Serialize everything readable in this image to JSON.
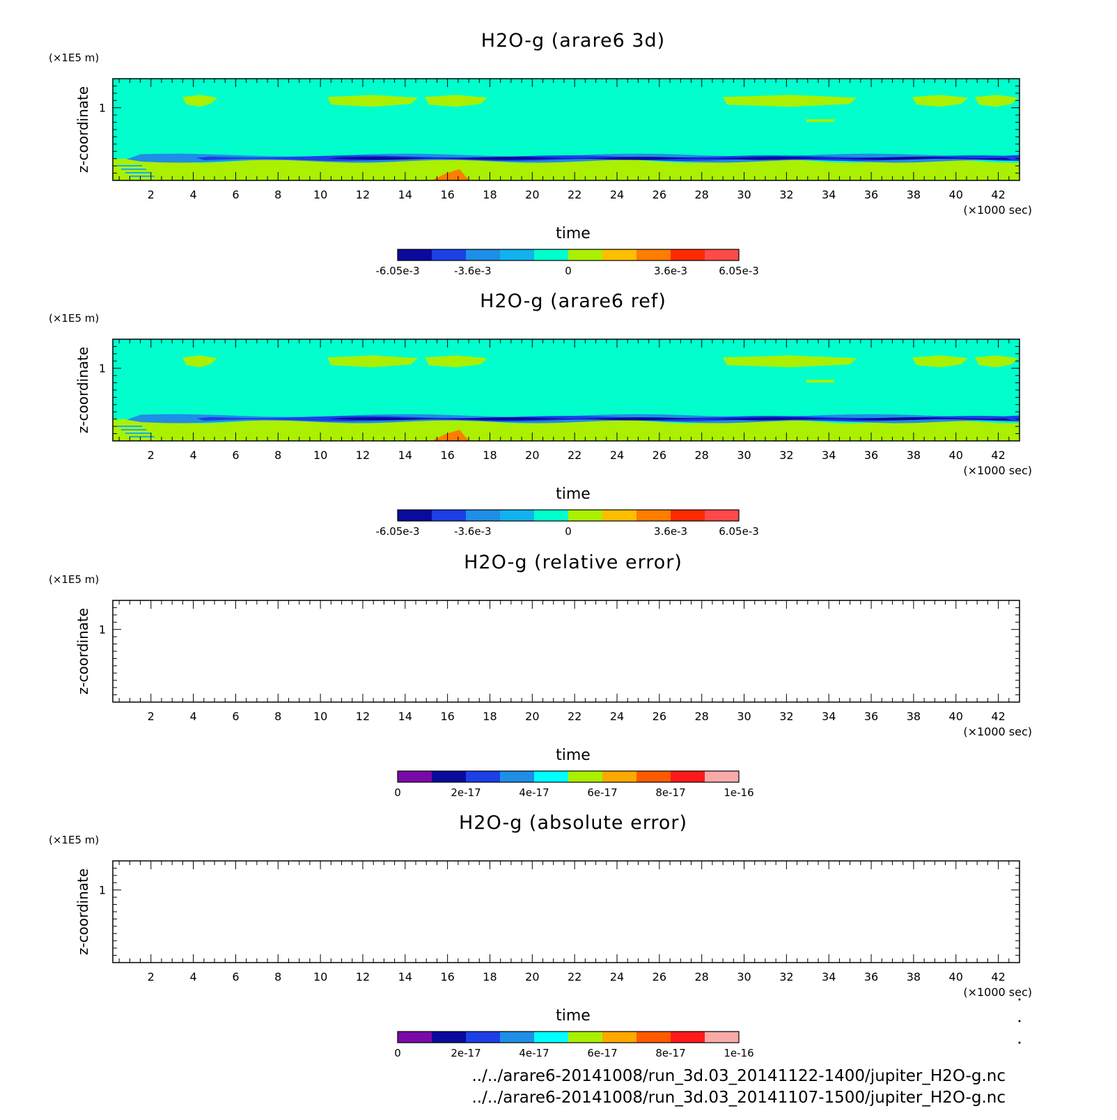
{
  "chart_data": [
    {
      "type": "heatmap",
      "title": "H2O-g (arare6 3d)",
      "xlabel": "time",
      "ylabel": "z-coordinate",
      "x_unit": "(×1000 sec)",
      "y_unit": "(×1E5 m)",
      "x_ticks": [
        "2",
        "4",
        "6",
        "8",
        "10",
        "12",
        "14",
        "16",
        "18",
        "20",
        "22",
        "24",
        "26",
        "28",
        "30",
        "32",
        "34",
        "36",
        "38",
        "40",
        "42"
      ],
      "y_ticks": [
        "1"
      ],
      "xlim": [
        0.2,
        43.0
      ],
      "ylim": [
        0.0,
        1.4
      ],
      "colorbar": {
        "labels": [
          "-6.05e-3",
          "-3.6e-3",
          "0",
          "3.6e-3",
          "6.05e-3"
        ],
        "colors": [
          "#0a0a9c",
          "#1c3fe6",
          "#1e8ee6",
          "#11b2ee",
          "#00ffcc",
          "#aaf000",
          "#ffbe00",
          "#ff7d00",
          "#ff2a00",
          "#ff4a4a"
        ]
      },
      "field": {
        "background": "#00ffcc",
        "upper_band_color": "#aaf000",
        "upper_band_level": 1.1,
        "lower_layer_color": "#aaf000",
        "lower_layer_top": 0.27,
        "min_band_color": "#0a0a9c",
        "min_band_level": 0.33
      }
    },
    {
      "type": "heatmap",
      "title": "H2O-g (arare6 ref)",
      "xlabel": "time",
      "ylabel": "z-coordinate",
      "x_unit": "(×1000 sec)",
      "y_unit": "(×1E5 m)",
      "x_ticks": [
        "2",
        "4",
        "6",
        "8",
        "10",
        "12",
        "14",
        "16",
        "18",
        "20",
        "22",
        "24",
        "26",
        "28",
        "30",
        "32",
        "34",
        "36",
        "38",
        "40",
        "42"
      ],
      "y_ticks": [
        "1"
      ],
      "xlim": [
        0.2,
        43.0
      ],
      "ylim": [
        0.0,
        1.4
      ],
      "colorbar": {
        "labels": [
          "-6.05e-3",
          "-3.6e-3",
          "0",
          "3.6e-3",
          "6.05e-3"
        ],
        "colors": [
          "#0a0a9c",
          "#1c3fe6",
          "#1e8ee6",
          "#11b2ee",
          "#00ffcc",
          "#aaf000",
          "#ffbe00",
          "#ff7d00",
          "#ff2a00",
          "#ff4a4a"
        ]
      },
      "field": {
        "background": "#00ffcc",
        "upper_band_color": "#aaf000",
        "upper_band_level": 1.1,
        "lower_layer_color": "#aaf000",
        "lower_layer_top": 0.27,
        "min_band_color": "#0a0a9c",
        "min_band_level": 0.33
      }
    },
    {
      "type": "heatmap",
      "title": "H2O-g (relative error)",
      "xlabel": "time",
      "ylabel": "z-coordinate",
      "x_unit": "(×1000 sec)",
      "y_unit": "(×1E5 m)",
      "x_ticks": [
        "2",
        "4",
        "6",
        "8",
        "10",
        "12",
        "14",
        "16",
        "18",
        "20",
        "22",
        "24",
        "26",
        "28",
        "30",
        "32",
        "34",
        "36",
        "38",
        "40",
        "42"
      ],
      "y_ticks": [
        "1"
      ],
      "xlim": [
        0.2,
        43.0
      ],
      "ylim": [
        0.0,
        1.4
      ],
      "colorbar": {
        "labels": [
          "0",
          "2e-17",
          "4e-17",
          "6e-17",
          "8e-17",
          "1e-16"
        ],
        "colors": [
          "#7a0aa8",
          "#0a0a9c",
          "#1c3fe6",
          "#1e8ee6",
          "#00ffff",
          "#aaf000",
          "#ffa800",
          "#ff5a00",
          "#ff1a1a",
          "#f8aaa8"
        ]
      },
      "field": null
    },
    {
      "type": "heatmap",
      "title": "H2O-g (absolute error)",
      "xlabel": "time",
      "ylabel": "z-coordinate",
      "x_unit": "(×1000 sec)",
      "y_unit": "(×1E5 m)",
      "x_ticks": [
        "2",
        "4",
        "6",
        "8",
        "10",
        "12",
        "14",
        "16",
        "18",
        "20",
        "22",
        "24",
        "26",
        "28",
        "30",
        "32",
        "34",
        "36",
        "38",
        "40",
        "42"
      ],
      "y_ticks": [
        "1"
      ],
      "xlim": [
        0.2,
        43.0
      ],
      "ylim": [
        0.0,
        1.4
      ],
      "colorbar": {
        "labels": [
          "0",
          "2e-17",
          "4e-17",
          "6e-17",
          "8e-17",
          "1e-16"
        ],
        "colors": [
          "#7a0aa8",
          "#0a0a9c",
          "#1c3fe6",
          "#1e8ee6",
          "#00ffff",
          "#aaf000",
          "#ffa800",
          "#ff5a00",
          "#ff1a1a",
          "#f8aaa8"
        ]
      },
      "field": null
    }
  ],
  "footer": {
    "lines": [
      "../../arare6-20141008/run_3d.03_20141122-1400/jupiter_H2O-g.nc",
      "../../arare6-20141008/run_3d.03_20141107-1500/jupiter_H2O-g.nc"
    ]
  }
}
